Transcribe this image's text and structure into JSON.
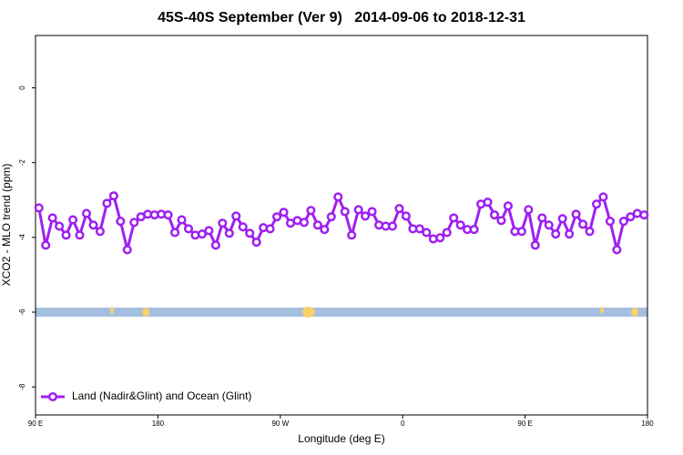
{
  "chart_data": {
    "type": "line",
    "title": "45S-40S September (Ver 9)   2014-09-06 to 2018-12-31",
    "x_label": "Longitude (deg E)",
    "y_label": "XCO2 - MLO trend (ppm)",
    "xlim": [
      90,
      540
    ],
    "ylim": [
      -8.75,
      1.4
    ],
    "xticks": [
      {
        "value": 90,
        "label": "90 E"
      },
      180,
      {
        "value": 270,
        "label": "90 W"
      },
      {
        "value": 360,
        "label": "0"
      },
      {
        "value": 450,
        "label": "90 E"
      },
      {
        "value": 540,
        "label": "180"
      }
    ],
    "yticks": [
      0,
      -2,
      -4,
      -6,
      -8
    ],
    "legend": "bottom-left",
    "x": [
      92.5,
      97.5,
      102.5,
      107.5,
      112.5,
      117.5,
      122.5,
      127.5,
      132.5,
      137.5,
      142.5,
      147.5,
      152.5,
      157.5,
      162.5,
      167.5,
      172.5,
      177.5,
      182.5,
      187.5,
      192.5,
      197.5,
      202.5,
      207.5,
      212.5,
      217.5,
      222.5,
      227.5,
      232.5,
      237.5,
      242.5,
      247.5,
      252.5,
      257.5,
      262.5,
      267.5,
      272.5,
      277.5,
      282.5,
      287.5,
      292.5,
      297.5,
      302.5,
      307.5,
      312.5,
      317.5,
      322.5,
      327.5,
      332.5,
      337.5,
      342.5,
      347.5,
      352.5,
      357.5,
      362.5,
      367.5,
      372.5,
      377.5,
      382.5,
      387.5,
      392.5,
      397.5,
      402.5,
      407.5,
      412.5,
      417.5,
      422.5,
      427.5,
      432.5,
      437.5,
      442.5,
      447.5,
      452.5,
      457.5,
      462.5,
      467.5,
      472.5,
      477.5,
      482.5,
      487.5,
      492.5,
      497.5,
      502.5,
      507.5,
      512.5,
      517.5,
      522.5,
      527.5,
      532.5,
      537.5
    ],
    "series": [
      {
        "name": "Land (Nadir&Glint) and Ocean (Glint)",
        "color": "#a020f0",
        "values": [
          -3.21,
          -4.21,
          -3.48,
          -3.7,
          -3.94,
          -3.53,
          -3.94,
          -3.36,
          -3.67,
          -3.84,
          -3.09,
          -2.89,
          -3.57,
          -4.33,
          -3.6,
          -3.45,
          -3.38,
          -3.4,
          -3.38,
          -3.4,
          -3.87,
          -3.53,
          -3.77,
          -3.94,
          -3.91,
          -3.82,
          -4.21,
          -3.62,
          -3.89,
          -3.43,
          -3.72,
          -3.89,
          -4.13,
          -3.74,
          -3.77,
          -3.45,
          -3.33,
          -3.62,
          -3.55,
          -3.6,
          -3.28,
          -3.67,
          -3.79,
          -3.45,
          -2.92,
          -3.31,
          -3.94,
          -3.26,
          -3.43,
          -3.31,
          -3.67,
          -3.7,
          -3.7,
          -3.23,
          -3.43,
          -3.77,
          -3.77,
          -3.87,
          -4.04,
          -4.01,
          -3.87,
          -3.48,
          -3.67,
          -3.79,
          -3.79,
          -3.11,
          -3.06,
          -3.4,
          -3.55,
          -3.16,
          -3.84,
          -3.84,
          -3.26,
          -4.21,
          -3.48,
          -3.67,
          -3.91,
          -3.5,
          -3.91,
          -3.38,
          -3.65,
          -3.84,
          -3.11,
          -2.92,
          -3.57,
          -4.33,
          -3.57,
          -3.45,
          -3.36,
          -3.4
        ]
      }
    ]
  }
}
